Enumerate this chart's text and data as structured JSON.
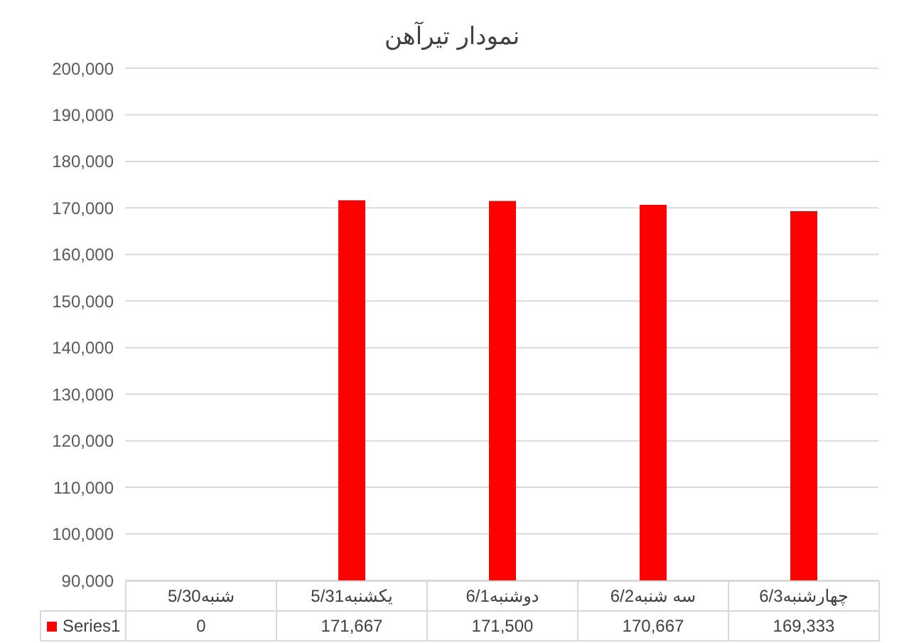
{
  "chart_data": {
    "type": "bar",
    "title": "نمودار تیرآهن",
    "categories": [
      "5/30شنبه",
      "5/31یکشنبه",
      "6/1دوشنبه",
      "6/2سه شنبه",
      "6/3چهارشنبه"
    ],
    "series": [
      {
        "name": "Series1",
        "color": "#ff0000",
        "values": [
          null,
          171667,
          171500,
          170667,
          169333
        ],
        "value_labels": [
          "0",
          "171,667",
          "171,500",
          "170,667",
          "169,333"
        ]
      }
    ],
    "ylim": [
      90000,
      200000
    ],
    "yticks": [
      {
        "value": 90000,
        "label": "90,000"
      },
      {
        "value": 100000,
        "label": "100,000"
      },
      {
        "value": 110000,
        "label": "110,000"
      },
      {
        "value": 120000,
        "label": "120,000"
      },
      {
        "value": 130000,
        "label": "130,000"
      },
      {
        "value": 140000,
        "label": "140,000"
      },
      {
        "value": 150000,
        "label": "150,000"
      },
      {
        "value": 160000,
        "label": "160,000"
      },
      {
        "value": 170000,
        "label": "170,000"
      },
      {
        "value": 180000,
        "label": "180,000"
      },
      {
        "value": 190000,
        "label": "190,000"
      },
      {
        "value": 200000,
        "label": "200,000"
      }
    ],
    "grid": "y",
    "legend": "bottom"
  }
}
